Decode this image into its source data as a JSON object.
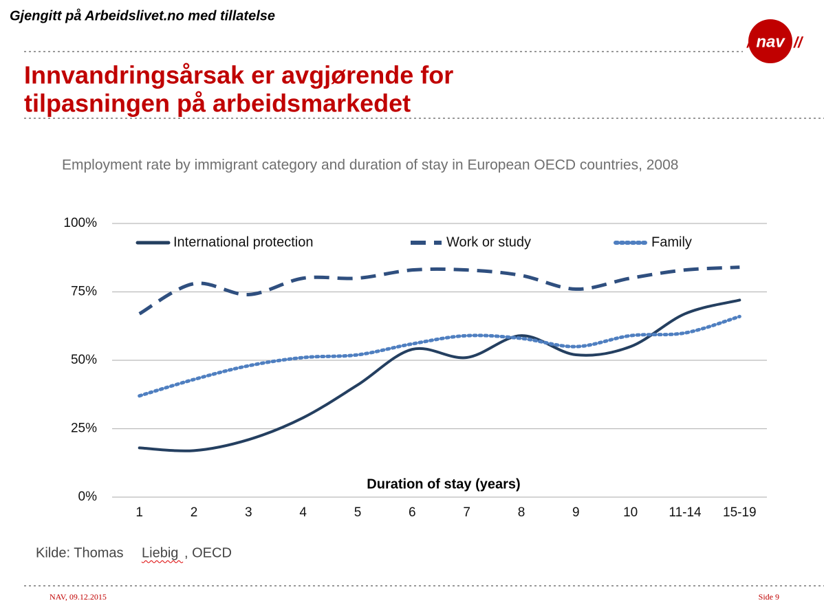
{
  "header": {
    "note": "Gjengitt på Arbeidslivet.no med tillatelse",
    "logo": "nav",
    "title_lines": [
      "Innvandringsårsak er avgjørende for",
      "tilpasningen på arbeidsmarkedet"
    ]
  },
  "chart_data": {
    "type": "line",
    "title": "Employment rate by immigrant category and duration of stay in European OECD countries, 2008",
    "x_label": "Duration of stay (years)",
    "categories": [
      "1",
      "2",
      "3",
      "4",
      "5",
      "6",
      "7",
      "8",
      "9",
      "10",
      "11-14",
      "15-19"
    ],
    "series": [
      {
        "name": "International protection",
        "color": "#243f60",
        "line_style": "solid",
        "values": [
          18,
          17,
          21,
          29,
          41,
          54,
          51,
          59,
          52,
          55,
          67,
          72
        ]
      },
      {
        "name": "Work or study",
        "color": "#2f4f7f",
        "line_style": "dashed",
        "values": [
          67,
          78,
          74,
          80,
          80,
          83,
          83,
          81,
          76,
          80,
          83,
          84
        ]
      },
      {
        "name": "Family",
        "color": "#4f7fc0",
        "line_style": "dotted",
        "values": [
          37,
          43,
          48,
          51,
          52,
          56,
          59,
          58,
          55,
          59,
          60,
          66
        ]
      }
    ],
    "ylim": [
      0,
      100
    ],
    "yticks": [
      {
        "value": 0,
        "label": "0%"
      },
      {
        "value": 25,
        "label": "25%"
      },
      {
        "value": 50,
        "label": "50%"
      },
      {
        "value": 75,
        "label": "75%"
      },
      {
        "value": 100,
        "label": "100%"
      }
    ],
    "grid": true,
    "smooth": true
  },
  "source": {
    "prefix": "Kilde: Thomas",
    "author": "Liebig",
    "suffix": ", OECD"
  },
  "footer": {
    "left": "NAV, 09.12.2015",
    "right": "Side 9"
  }
}
